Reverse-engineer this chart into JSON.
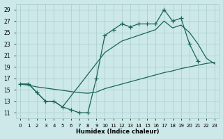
{
  "bg_color": "#cce8e8",
  "grid_color": "#aacccc",
  "line_color": "#1a6655",
  "xlim": [
    -0.5,
    23.5
  ],
  "ylim": [
    10,
    30
  ],
  "xticks": [
    0,
    1,
    2,
    3,
    4,
    5,
    6,
    7,
    8,
    9,
    10,
    11,
    12,
    13,
    14,
    15,
    16,
    17,
    18,
    19,
    20,
    21,
    22,
    23
  ],
  "yticks": [
    11,
    13,
    15,
    17,
    19,
    21,
    23,
    25,
    27,
    29
  ],
  "xlabel": "Humidex (Indice chaleur)",
  "line1_x": [
    0,
    1,
    2,
    3,
    4,
    5,
    6,
    7,
    8,
    9,
    10,
    11,
    12,
    13,
    14,
    15,
    16,
    17,
    18,
    19,
    20,
    21
  ],
  "line1_y": [
    16,
    16,
    14.5,
    13,
    13,
    12,
    11.5,
    11,
    11,
    17,
    24.5,
    25.5,
    26.5,
    26,
    26.5,
    26.5,
    26.5,
    29,
    27,
    27.5,
    23,
    20
  ],
  "line2_x": [
    0,
    1,
    2,
    3,
    4,
    5,
    6,
    7,
    8,
    9,
    10,
    11,
    12,
    13,
    14,
    15,
    16,
    17,
    18,
    19,
    20,
    21,
    22,
    23
  ],
  "line2_y": [
    16,
    15.8,
    15.5,
    15.3,
    15.1,
    14.9,
    14.7,
    14.5,
    14.4,
    14.6,
    15.2,
    15.6,
    16.0,
    16.4,
    16.8,
    17.2,
    17.6,
    18.0,
    18.3,
    18.7,
    19.0,
    19.3,
    19.6,
    19.8
  ],
  "line3_x": [
    0,
    1,
    2,
    3,
    4,
    5,
    10,
    11,
    12,
    13,
    14,
    15,
    16,
    17,
    18,
    19,
    20,
    21,
    22,
    23
  ],
  "line3_y": [
    16,
    16,
    14.5,
    13,
    13,
    12,
    21.5,
    22.5,
    23.5,
    24,
    24.5,
    25,
    25.5,
    27,
    25.8,
    26.3,
    25,
    23,
    20.5,
    19.5
  ]
}
